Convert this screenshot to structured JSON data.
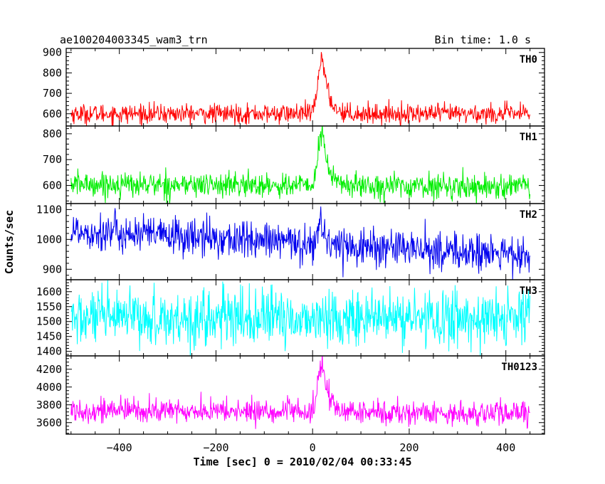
{
  "header": {
    "title": "ae100204003345_wam3_trn",
    "bin_time": "Bin time: 1.0 s"
  },
  "chart_data": {
    "type": "line",
    "xlabel": "Time [sec] 0 = 2010/02/04 00:33:45",
    "ylabel": "Counts/sec",
    "xlim": [
      -510,
      480
    ],
    "x_ticks": [
      -400,
      -200,
      0,
      200,
      400
    ],
    "x_range_data": [
      -500,
      450
    ],
    "panels": [
      {
        "name": "TH0",
        "color": "#ff0000",
        "ylim": [
          540,
          920
        ],
        "y_ticks": [
          600,
          700,
          800,
          900
        ],
        "baseline_start": 600,
        "baseline_end": 600,
        "noise": 28,
        "peak": 890,
        "peak_time": 20,
        "rise_sec": 8,
        "decay_sec": 12
      },
      {
        "name": "TH1",
        "color": "#00ee00",
        "ylim": [
          530,
          830
        ],
        "y_ticks": [
          600,
          700,
          800
        ],
        "baseline_start": 605,
        "baseline_end": 595,
        "noise": 28,
        "peak": 810,
        "peak_time": 20,
        "rise_sec": 8,
        "decay_sec": 12
      },
      {
        "name": "TH2",
        "color": "#0000ee",
        "ylim": [
          865,
          1120
        ],
        "y_ticks": [
          900,
          1000,
          1100
        ],
        "baseline_start": 1030,
        "baseline_end": 945,
        "noise": 38,
        "peak": 1060,
        "peak_time": 15,
        "rise_sec": 5,
        "decay_sec": 10
      },
      {
        "name": "TH3",
        "color": "#00ffff",
        "ylim": [
          1385,
          1640
        ],
        "y_ticks": [
          1400,
          1450,
          1500,
          1550,
          1600
        ],
        "baseline_start": 1510,
        "baseline_end": 1510,
        "noise": 55,
        "peak": 1510,
        "peak_time": 20,
        "rise_sec": 8,
        "decay_sec": 12
      },
      {
        "name": "TH0123",
        "color": "#ff00ff",
        "ylim": [
          3470,
          4350
        ],
        "y_ticks": [
          3600,
          3800,
          4000,
          4200
        ],
        "baseline_start": 3740,
        "baseline_end": 3700,
        "noise": 80,
        "peak": 4280,
        "peak_time": 20,
        "rise_sec": 8,
        "decay_sec": 12
      }
    ]
  }
}
